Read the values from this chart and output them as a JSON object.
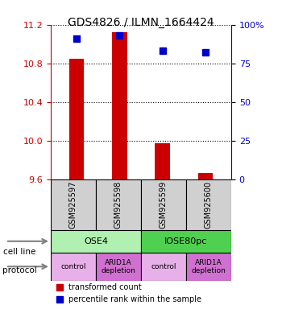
{
  "title": "GDS4826 / ILMN_1664424",
  "samples": [
    "GSM925597",
    "GSM925598",
    "GSM925599",
    "GSM925600"
  ],
  "red_values": [
    10.85,
    11.12,
    9.97,
    9.67
  ],
  "blue_values": [
    91,
    93,
    83,
    82
  ],
  "ylim_left": [
    9.6,
    11.2
  ],
  "ylim_right": [
    0,
    100
  ],
  "yticks_left": [
    9.6,
    10.0,
    10.4,
    10.8,
    11.2
  ],
  "yticks_right": [
    0,
    25,
    50,
    75,
    100
  ],
  "ytick_labels_right": [
    "0",
    "25",
    "50",
    "75",
    "100%"
  ],
  "cell_line_labels": [
    "OSE4",
    "IOSE80pc"
  ],
  "cell_line_spans": [
    [
      0,
      2
    ],
    [
      2,
      4
    ]
  ],
  "cell_line_colors": [
    "#b0f0b0",
    "#50d050"
  ],
  "protocol_labels": [
    "control",
    "ARID1A\ndepletion",
    "control",
    "ARID1A\ndepletion"
  ],
  "protocol_colors": [
    "#e8b0e8",
    "#d070d0",
    "#e8b0e8",
    "#d070d0"
  ],
  "red_color": "#cc0000",
  "blue_color": "#0000cc",
  "bar_base": 9.6,
  "blue_marker_value": 100,
  "legend_red": "transformed count",
  "legend_blue": "percentile rank within the sample"
}
